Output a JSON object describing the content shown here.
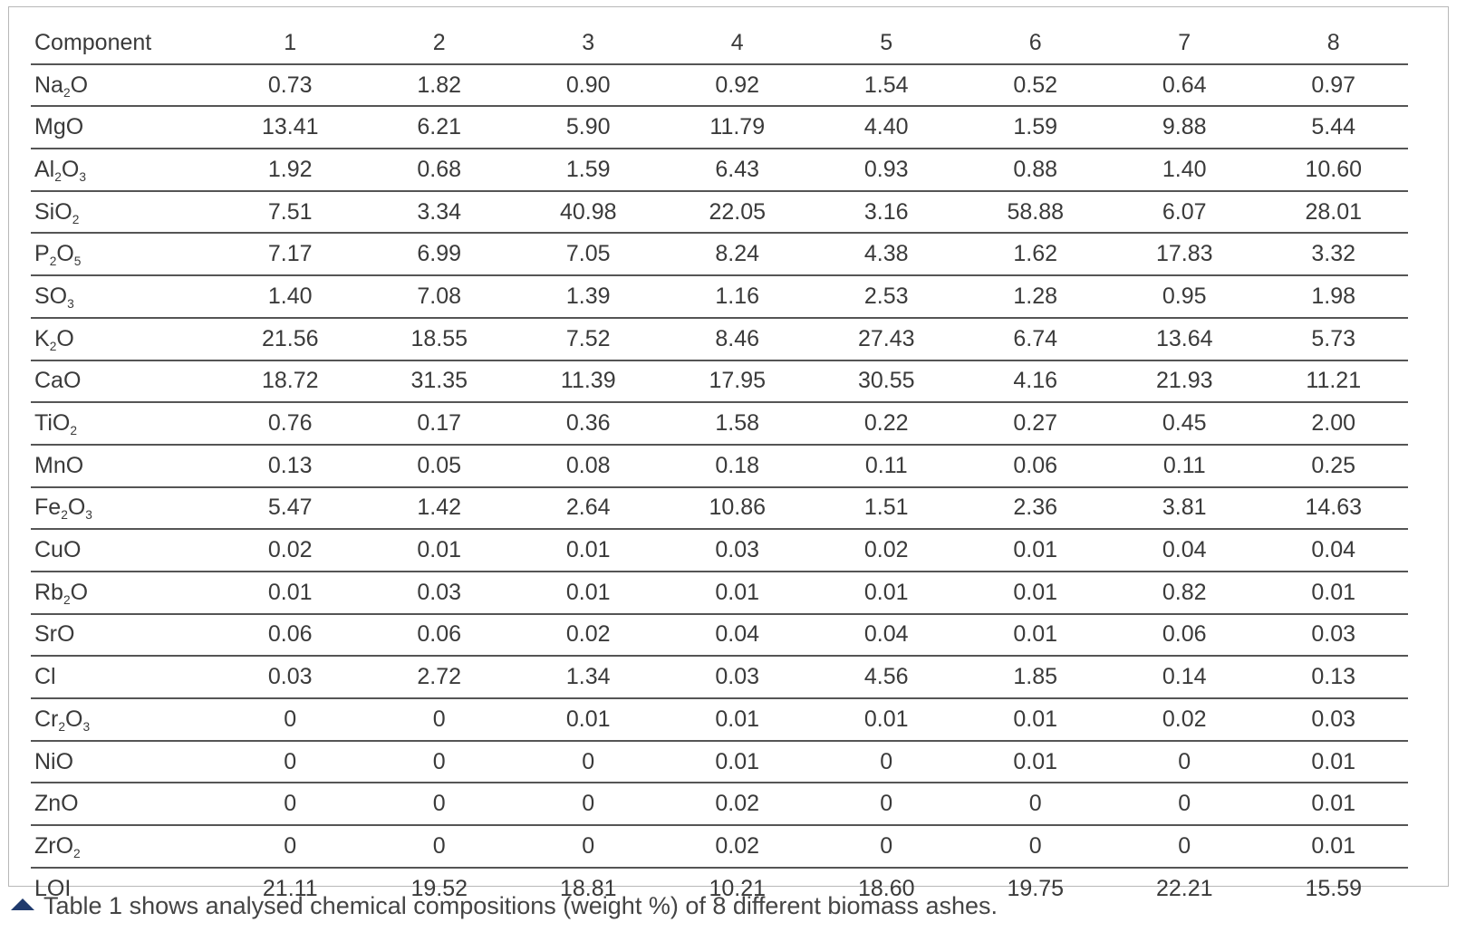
{
  "table": {
    "headers": [
      "Component",
      "1",
      "2",
      "3",
      "4",
      "5",
      "6",
      "7",
      "8"
    ],
    "rows": [
      {
        "component": {
          "base": "Na",
          "sub": "2",
          "tail": "O"
        },
        "values": [
          "0.73",
          "1.82",
          "0.90",
          "0.92",
          "1.54",
          "0.52",
          "0.64",
          "0.97"
        ]
      },
      {
        "component": {
          "base": "MgO",
          "sub": "",
          "tail": ""
        },
        "values": [
          "13.41",
          "6.21",
          "5.90",
          "11.79",
          "4.40",
          "1.59",
          "9.88",
          "5.44"
        ]
      },
      {
        "component": {
          "base": "Al",
          "sub": "2",
          "tail": "O",
          "sub2": "3"
        },
        "values": [
          "1.92",
          "0.68",
          "1.59",
          "6.43",
          "0.93",
          "0.88",
          "1.40",
          "10.60"
        ]
      },
      {
        "component": {
          "base": "SiO",
          "sub": "2",
          "tail": ""
        },
        "values": [
          "7.51",
          "3.34",
          "40.98",
          "22.05",
          "3.16",
          "58.88",
          "6.07",
          "28.01"
        ]
      },
      {
        "component": {
          "base": "P",
          "sub": "2",
          "tail": "O",
          "sub2": "5"
        },
        "values": [
          "7.17",
          "6.99",
          "7.05",
          "8.24",
          "4.38",
          "1.62",
          "17.83",
          "3.32"
        ]
      },
      {
        "component": {
          "base": "SO",
          "sub": "3",
          "tail": ""
        },
        "values": [
          "1.40",
          "7.08",
          "1.39",
          "1.16",
          "2.53",
          "1.28",
          "0.95",
          "1.98"
        ]
      },
      {
        "component": {
          "base": "K",
          "sub": "2",
          "tail": "O"
        },
        "values": [
          "21.56",
          "18.55",
          "7.52",
          "8.46",
          "27.43",
          "6.74",
          "13.64",
          "5.73"
        ]
      },
      {
        "component": {
          "base": "CaO",
          "sub": "",
          "tail": ""
        },
        "values": [
          "18.72",
          "31.35",
          "11.39",
          "17.95",
          "30.55",
          "4.16",
          "21.93",
          "11.21"
        ]
      },
      {
        "component": {
          "base": "TiO",
          "sub": "2",
          "tail": ""
        },
        "values": [
          "0.76",
          "0.17",
          "0.36",
          "1.58",
          "0.22",
          "0.27",
          "0.45",
          "2.00"
        ]
      },
      {
        "component": {
          "base": "MnO",
          "sub": "",
          "tail": ""
        },
        "values": [
          "0.13",
          "0.05",
          "0.08",
          "0.18",
          "0.11",
          "0.06",
          "0.11",
          "0.25"
        ]
      },
      {
        "component": {
          "base": "Fe",
          "sub": "2",
          "tail": "O",
          "sub2": "3"
        },
        "values": [
          "5.47",
          "1.42",
          "2.64",
          "10.86",
          "1.51",
          "2.36",
          "3.81",
          "14.63"
        ]
      },
      {
        "component": {
          "base": "CuO",
          "sub": "",
          "tail": ""
        },
        "values": [
          "0.02",
          "0.01",
          "0.01",
          "0.03",
          "0.02",
          "0.01",
          "0.04",
          "0.04"
        ]
      },
      {
        "component": {
          "base": "Rb",
          "sub": "2",
          "tail": "O"
        },
        "values": [
          "0.01",
          "0.03",
          "0.01",
          "0.01",
          "0.01",
          "0.01",
          "0.82",
          "0.01"
        ]
      },
      {
        "component": {
          "base": "SrO",
          "sub": "",
          "tail": ""
        },
        "values": [
          "0.06",
          "0.06",
          "0.02",
          "0.04",
          "0.04",
          "0.01",
          "0.06",
          "0.03"
        ]
      },
      {
        "component": {
          "base": "Cl",
          "sub": "",
          "tail": ""
        },
        "values": [
          "0.03",
          "2.72",
          "1.34",
          "0.03",
          "4.56",
          "1.85",
          "0.14",
          "0.13"
        ]
      },
      {
        "component": {
          "base": "Cr",
          "sub": "2",
          "tail": "O",
          "sub2": "3"
        },
        "values": [
          "0",
          "0",
          "0.01",
          "0.01",
          "0.01",
          "0.01",
          "0.02",
          "0.03"
        ]
      },
      {
        "component": {
          "base": "NiO",
          "sub": "",
          "tail": ""
        },
        "values": [
          "0",
          "0",
          "0",
          "0.01",
          "0",
          "0.01",
          "0",
          "0.01"
        ]
      },
      {
        "component": {
          "base": "ZnO",
          "sub": "",
          "tail": ""
        },
        "values": [
          "0",
          "0",
          "0",
          "0.02",
          "0",
          "0",
          "0",
          "0.01"
        ]
      },
      {
        "component": {
          "base": "ZrO",
          "sub": "2",
          "tail": ""
        },
        "values": [
          "0",
          "0",
          "0",
          "0.02",
          "0",
          "0",
          "0",
          "0.01"
        ]
      },
      {
        "component": {
          "base": "LOI",
          "sub": "",
          "tail": ""
        },
        "values": [
          "21.11",
          "19.52",
          "18.81",
          "10.21",
          "18.60",
          "19.75",
          "22.21",
          "15.59"
        ]
      }
    ]
  },
  "caption": {
    "icon": "triangle-up-icon",
    "text": "Table 1 shows analysed chemical compositions (weight %) of 8 different biomass ashes."
  }
}
